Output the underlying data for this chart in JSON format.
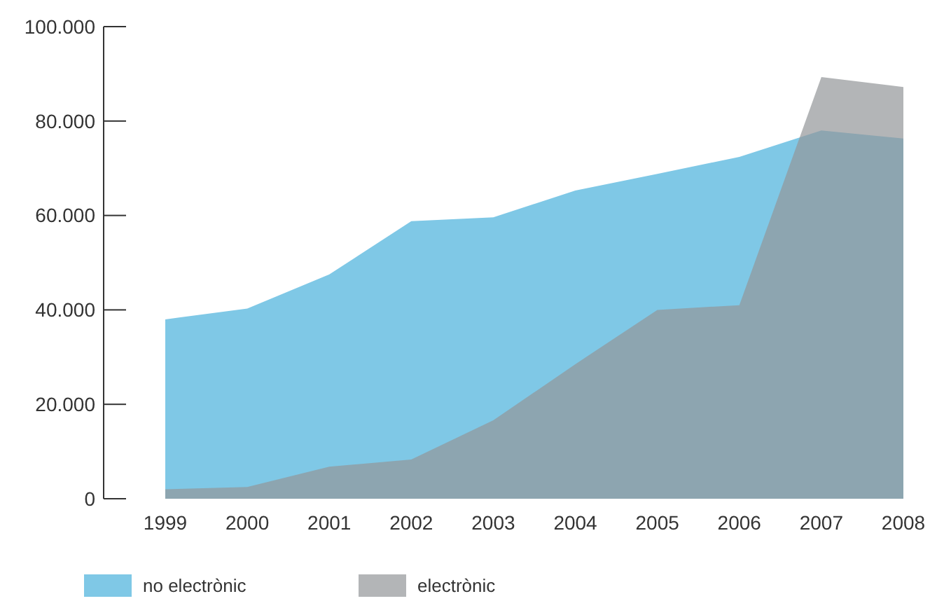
{
  "chart_data": {
    "type": "area",
    "categories": [
      "1999",
      "2000",
      "2001",
      "2002",
      "2003",
      "2004",
      "2005",
      "2006",
      "2007",
      "2008"
    ],
    "series": [
      {
        "name": "no electrònic",
        "color": "#7fc8e6",
        "values": [
          38000,
          40300,
          47500,
          58800,
          59600,
          65300,
          68800,
          72400,
          78000,
          76300
        ]
      },
      {
        "name": "electrònic",
        "color": "#939598",
        "values": [
          2000,
          2500,
          6800,
          8300,
          16600,
          28500,
          40000,
          41000,
          89300,
          87200
        ]
      }
    ],
    "ylim": [
      0,
      100000
    ],
    "yticks": [
      {
        "value": 0,
        "label": "0"
      },
      {
        "value": 20000,
        "label": "20.000"
      },
      {
        "value": 40000,
        "label": "40.000"
      },
      {
        "value": 60000,
        "label": "60.000"
      },
      {
        "value": 80000,
        "label": "80.000"
      },
      {
        "value": 100000,
        "label": "100.000"
      }
    ],
    "legend": "bottom left",
    "grid": false
  }
}
